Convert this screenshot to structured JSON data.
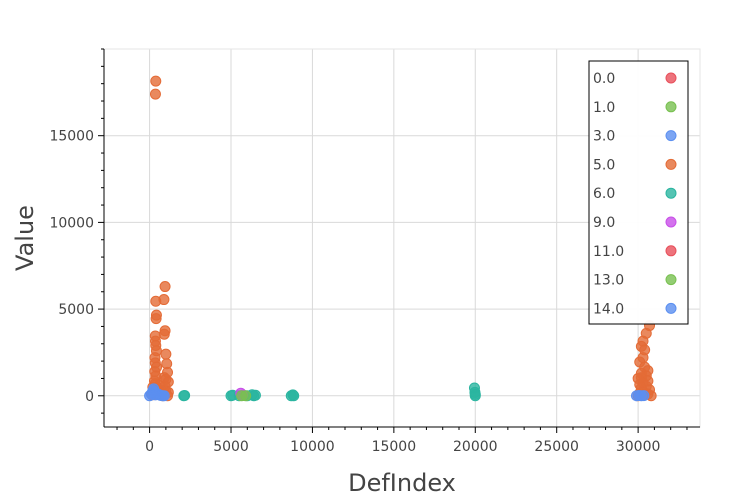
{
  "chart_data": {
    "type": "scatter",
    "title": "",
    "xlabel": "DefIndex",
    "ylabel": "Value",
    "xlim": [
      -2800,
      33800
    ],
    "ylim": [
      -1800,
      20000
    ],
    "x_ticks": [
      0,
      5000,
      10000,
      15000,
      20000,
      25000,
      30000
    ],
    "x_tick_labels": [
      "0",
      "5000",
      "10000",
      "15000",
      "20000",
      "25000",
      "30000"
    ],
    "y_ticks": [
      0,
      5000,
      10000,
      15000
    ],
    "y_tick_labels": [
      "0",
      "5000",
      "10000",
      "15000"
    ],
    "grid": true,
    "legend_position": "top-right",
    "series": [
      {
        "name": "0.0",
        "color": "#e8505b",
        "points": []
      },
      {
        "name": "1.0",
        "color": "#78c050",
        "points": []
      },
      {
        "name": "3.0",
        "color": "#5b8ff0",
        "points": []
      },
      {
        "name": "5.0",
        "color": "#e46b36",
        "points": [
          [
            380,
            18150
          ],
          [
            360,
            17400
          ],
          [
            950,
            6300
          ],
          [
            880,
            5550
          ],
          [
            380,
            5450
          ],
          [
            420,
            4650
          ],
          [
            400,
            4450
          ],
          [
            950,
            3750
          ],
          [
            900,
            3550
          ],
          [
            350,
            3450
          ],
          [
            360,
            3150
          ],
          [
            380,
            2900
          ],
          [
            1000,
            2400
          ],
          [
            420,
            2600
          ],
          [
            330,
            2200
          ],
          [
            350,
            1900
          ],
          [
            1050,
            1850
          ],
          [
            430,
            1650
          ],
          [
            1100,
            1350
          ],
          [
            320,
            1400
          ],
          [
            380,
            1150
          ],
          [
            900,
            1050
          ],
          [
            1000,
            950
          ],
          [
            1150,
            800
          ],
          [
            300,
            850
          ],
          [
            350,
            700
          ],
          [
            600,
            600
          ],
          [
            950,
            550
          ],
          [
            200,
            500
          ],
          [
            420,
            450
          ],
          [
            700,
            350
          ],
          [
            1000,
            300
          ],
          [
            1150,
            200
          ],
          [
            500,
            150
          ],
          [
            250,
            100
          ],
          [
            150,
            50
          ],
          [
            800,
            0
          ],
          [
            1100,
            0
          ],
          [
            30700,
            4050
          ],
          [
            30500,
            3600
          ],
          [
            30300,
            3150
          ],
          [
            30200,
            2850
          ],
          [
            30400,
            2650
          ],
          [
            30300,
            2200
          ],
          [
            30100,
            1950
          ],
          [
            30400,
            1650
          ],
          [
            30600,
            1450
          ],
          [
            30200,
            1300
          ],
          [
            30500,
            1150
          ],
          [
            30200,
            1050
          ],
          [
            30000,
            1000
          ],
          [
            30600,
            850
          ],
          [
            30300,
            750
          ],
          [
            30100,
            650
          ],
          [
            30500,
            550
          ],
          [
            30200,
            450
          ],
          [
            30700,
            350
          ],
          [
            30300,
            250
          ],
          [
            30100,
            150
          ],
          [
            30600,
            100
          ],
          [
            30400,
            50
          ],
          [
            30800,
            0
          ],
          [
            30000,
            0
          ]
        ]
      },
      {
        "name": "6.0",
        "color": "#2bb5a0",
        "points": [
          [
            2100,
            0
          ],
          [
            2150,
            20
          ],
          [
            5000,
            0
          ],
          [
            5100,
            30
          ],
          [
            5500,
            0
          ],
          [
            5800,
            20
          ],
          [
            6000,
            0
          ],
          [
            6300,
            60
          ],
          [
            6400,
            0
          ],
          [
            6500,
            30
          ],
          [
            8700,
            0
          ],
          [
            8800,
            50
          ],
          [
            8850,
            0
          ],
          [
            19950,
            450
          ],
          [
            19980,
            200
          ],
          [
            20000,
            80
          ],
          [
            20000,
            0
          ]
        ]
      },
      {
        "name": "9.0",
        "color": "#c84fe8",
        "points": [
          [
            5600,
            150
          ],
          [
            5700,
            40
          ]
        ]
      },
      {
        "name": "11.0",
        "color": "#e8505b",
        "points": []
      },
      {
        "name": "13.0",
        "color": "#78c050",
        "points": [
          [
            5650,
            0
          ],
          [
            5900,
            0
          ]
        ]
      },
      {
        "name": "14.0",
        "color": "#5b8ff0",
        "points": [
          [
            0,
            0
          ],
          [
            100,
            100
          ],
          [
            200,
            300
          ],
          [
            300,
            200
          ],
          [
            400,
            150
          ],
          [
            500,
            100
          ],
          [
            600,
            50
          ],
          [
            700,
            20
          ],
          [
            800,
            0
          ],
          [
            900,
            0
          ],
          [
            250,
            400
          ],
          [
            350,
            50
          ],
          [
            29900,
            0
          ],
          [
            30050,
            20
          ],
          [
            30200,
            0
          ],
          [
            30350,
            10
          ]
        ]
      }
    ]
  }
}
